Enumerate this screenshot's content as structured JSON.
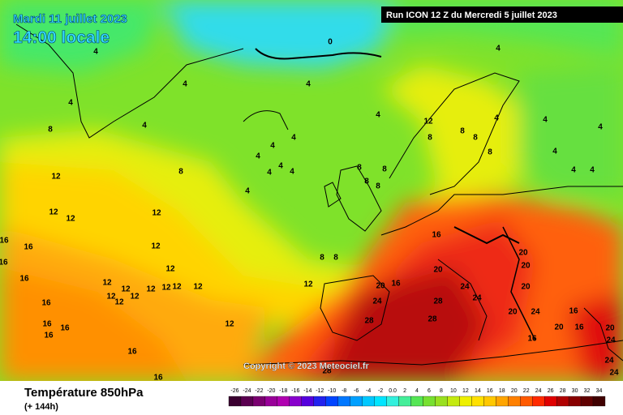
{
  "header": {
    "date": "Mardi 11 juillet 2023",
    "time": "14:00 locale",
    "run": "Run ICON 12 Z du Mercredi 5 juillet 2023"
  },
  "copyright": "Copyright © 2023 Meteociel.fr",
  "footer": {
    "title": "Température 850hPa",
    "subtitle": "(+ 144h)"
  },
  "legend": {
    "ticks": [
      -26,
      -24,
      -22,
      -20,
      -18,
      -16,
      -14,
      -12,
      -10,
      -8,
      -6,
      -4,
      -2,
      {
        "value": 0,
        "label": "0.0"
      },
      2,
      4,
      6,
      8,
      10,
      12,
      14,
      16,
      18,
      20,
      22,
      24,
      26,
      28,
      30,
      32,
      34
    ],
    "colors": [
      "#3a0030",
      "#5a0050",
      "#7a0070",
      "#990099",
      "#b000b0",
      "#8800cc",
      "#5500dd",
      "#2222ee",
      "#0044ff",
      "#0077ff",
      "#00a0ff",
      "#00c8ff",
      "#00e5ff",
      "#33f0dd",
      "#44ee99",
      "#55e655",
      "#77e030",
      "#99e020",
      "#c4ea10",
      "#eef000",
      "#ffe000",
      "#ffc800",
      "#ffa500",
      "#ff8000",
      "#ff5a00",
      "#ff2a00",
      "#e00000",
      "#b00000",
      "#880000",
      "#600000",
      "#400000"
    ]
  },
  "contour_labels": [
    0,
    4,
    4,
    4,
    4,
    4,
    4,
    4,
    4,
    4,
    4,
    4,
    4,
    4,
    4,
    4,
    4,
    4,
    4,
    4,
    4,
    8,
    8,
    8,
    8,
    8,
    8,
    8,
    8,
    8,
    8,
    8,
    8,
    12,
    12,
    12,
    12,
    12,
    12,
    12,
    12,
    12,
    12,
    12,
    12,
    12,
    12,
    12,
    12,
    12,
    12,
    16,
    16,
    16,
    16,
    16,
    16,
    16,
    16,
    16,
    16,
    16,
    16,
    16,
    16,
    16,
    20,
    20,
    20,
    20,
    20,
    20,
    20,
    20,
    24,
    24,
    24,
    24,
    24,
    24,
    24,
    28,
    28,
    28,
    28
  ]
}
